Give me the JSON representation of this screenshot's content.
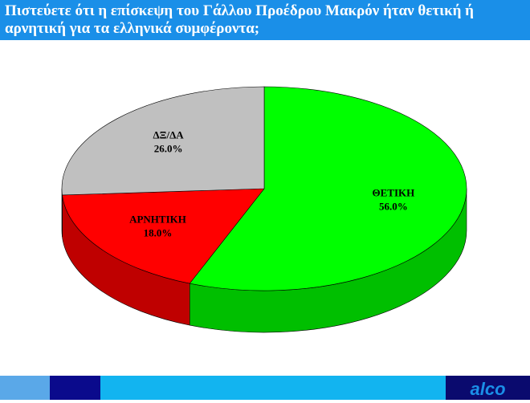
{
  "chart_data": {
    "type": "pie",
    "title": "Πιστεύετε ότι η επίσκεψη του Γάλλου Προέδρου Μακρόν ήταν θετική ή αρνητική για τα ελληνικά συμφέροντα;",
    "categories": [
      "ΘΕΤΙΚΗ",
      "ΑΡΝΗΤΙΚΗ",
      "ΔΞ/ΔΑ"
    ],
    "values": [
      56.0,
      18.0,
      26.0
    ],
    "value_labels": [
      "56.0%",
      "18.0%",
      "26.0%"
    ],
    "colors": [
      "#00ff00",
      "#ff0000",
      "#c0c0c0"
    ]
  },
  "footer": {
    "logo": "alco"
  }
}
